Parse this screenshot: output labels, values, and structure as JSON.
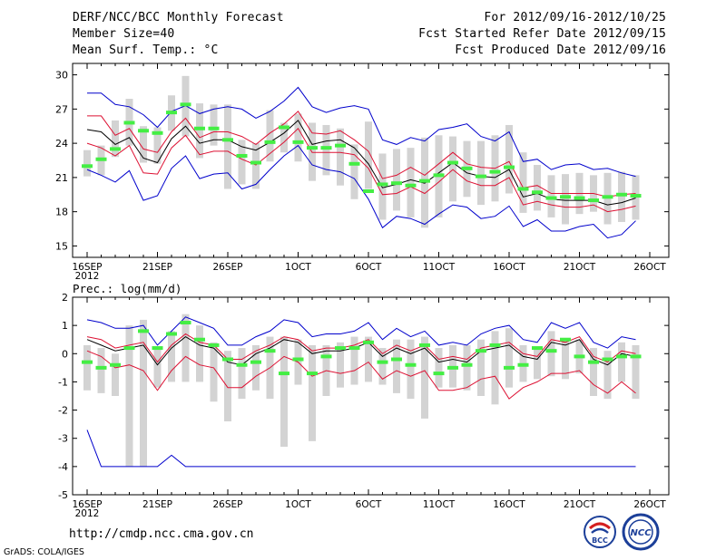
{
  "header": {
    "title": "DERF/NCC/BCC Monthly Forecast",
    "member_size": "Member Size=40",
    "variable": "Mean Surf. Temp.: °C",
    "forecast_period": "For 2012/09/16-2012/10/25",
    "started_refer": "Fcst Started Refer Date 2012/09/15",
    "produced": "Fcst Produced Date 2012/09/16"
  },
  "footer": {
    "url": "http://cmdp.ncc.cma.gov.cn",
    "grads": "GrADS: COLA/IGES",
    "logo_left": "BCC",
    "logo_right": "NCC"
  },
  "colors": {
    "envelope": "#0000cc",
    "spread": "#dd1133",
    "ensemble_mean": "#000000",
    "box": "#d3d3d3",
    "observation": "#44ee44"
  },
  "chart_data": [
    {
      "type": "line",
      "id": "temp",
      "title": "Mean Surf. Temp.: °C",
      "xlabel": "",
      "ylabel": "°C",
      "ylim": [
        14,
        31
      ],
      "yticks": [
        15,
        18,
        21,
        24,
        27,
        30
      ],
      "x_tick_labels": [
        {
          "day": 1,
          "label": "16SEP",
          "sub": "2012"
        },
        {
          "day": 6,
          "label": "21SEP"
        },
        {
          "day": 11,
          "label": "26SEP"
        },
        {
          "day": 16,
          "label": "1OCT"
        },
        {
          "day": 21,
          "label": "6OCT"
        },
        {
          "day": 26,
          "label": "11OCT"
        },
        {
          "day": 31,
          "label": "16OCT"
        },
        {
          "day": 36,
          "label": "21OCT"
        },
        {
          "day": 41,
          "label": "26OCT"
        }
      ],
      "days": [
        1,
        2,
        3,
        4,
        5,
        6,
        7,
        8,
        9,
        10,
        11,
        12,
        13,
        14,
        15,
        16,
        17,
        18,
        19,
        20,
        21,
        22,
        23,
        24,
        25,
        26,
        27,
        28,
        29,
        30,
        31,
        32,
        33,
        34,
        35,
        36,
        37,
        38,
        39,
        40
      ],
      "series": [
        {
          "name": "max",
          "role": "envelope",
          "values": [
            28.4,
            28.4,
            27.4,
            27.2,
            26.5,
            25.4,
            26.8,
            27.3,
            26.6,
            27.0,
            27.2,
            27.0,
            26.2,
            26.8,
            27.7,
            28.9,
            27.2,
            26.7,
            27.1,
            27.3,
            27.0,
            24.3,
            23.9,
            24.5,
            24.2,
            25.2,
            25.4,
            25.7,
            24.6,
            24.2,
            25.0,
            22.4,
            22.6,
            21.7,
            22.1,
            22.2,
            21.7,
            21.8,
            21.4,
            21.1
          ]
        },
        {
          "name": "p_high",
          "role": "spread",
          "values": [
            26.4,
            26.4,
            24.7,
            25.3,
            23.5,
            23.2,
            25.0,
            26.2,
            24.5,
            25.0,
            25.0,
            24.6,
            23.9,
            24.9,
            25.7,
            26.8,
            24.9,
            24.8,
            25.1,
            24.3,
            23.3,
            20.9,
            21.2,
            21.9,
            21.2,
            22.2,
            23.2,
            22.2,
            21.9,
            21.8,
            22.4,
            20.1,
            20.3,
            19.6,
            19.6,
            19.6,
            19.6,
            19.3,
            19.5,
            19.6
          ]
        },
        {
          "name": "p_low",
          "role": "spread",
          "values": [
            24.0,
            23.6,
            22.9,
            23.8,
            21.4,
            21.3,
            23.6,
            24.7,
            23.0,
            23.3,
            23.3,
            22.6,
            22.1,
            23.1,
            24.1,
            25.3,
            23.2,
            23.2,
            23.2,
            23.0,
            21.8,
            19.5,
            19.6,
            20.2,
            19.6,
            20.6,
            21.7,
            20.7,
            20.3,
            20.3,
            21.0,
            18.6,
            18.9,
            18.6,
            18.4,
            18.4,
            18.6,
            18.0,
            18.2,
            18.5
          ]
        },
        {
          "name": "mean",
          "role": "mean",
          "values": [
            25.2,
            25.0,
            23.9,
            24.5,
            22.7,
            22.3,
            24.4,
            25.5,
            24.0,
            24.3,
            24.3,
            23.7,
            23.4,
            24.1,
            24.9,
            26.0,
            23.9,
            24.2,
            24.3,
            23.6,
            22.2,
            20.1,
            20.4,
            20.8,
            20.5,
            21.4,
            22.3,
            21.4,
            21.1,
            21.0,
            21.7,
            19.3,
            19.6,
            19.1,
            19.0,
            19.0,
            19.0,
            18.6,
            18.8,
            19.2
          ]
        },
        {
          "name": "min",
          "role": "envelope",
          "values": [
            21.7,
            21.2,
            20.6,
            21.6,
            19.0,
            19.4,
            21.8,
            22.9,
            20.9,
            21.3,
            21.4,
            20.0,
            20.4,
            21.7,
            22.9,
            23.8,
            22.1,
            21.7,
            21.5,
            20.9,
            19.1,
            16.6,
            17.6,
            17.4,
            16.9,
            17.8,
            18.6,
            18.4,
            17.4,
            17.6,
            18.5,
            16.7,
            17.3,
            16.3,
            16.3,
            16.7,
            16.9,
            15.7,
            16.0,
            17.2
          ]
        },
        {
          "name": "observation",
          "role": "observation",
          "values": [
            22.0,
            22.6,
            23.5,
            25.8,
            25.1,
            24.9,
            26.7,
            27.4,
            25.3,
            25.3,
            24.3,
            22.9,
            22.3,
            24.1,
            25.4,
            24.1,
            23.6,
            23.6,
            23.8,
            22.2,
            19.8,
            20.4,
            20.5,
            20.3,
            20.7,
            21.2,
            22.3,
            21.8,
            21.1,
            21.5,
            21.9,
            20.0,
            19.7,
            19.2,
            19.3,
            19.2,
            19.0,
            19.3,
            19.5,
            19.4
          ]
        },
        {
          "name": "box_high",
          "role": "box",
          "values": [
            23.4,
            23.8,
            26.0,
            27.9,
            25.5,
            25.4,
            28.2,
            29.9,
            27.5,
            27.4,
            27.4,
            24.3,
            24.0,
            26.9,
            25.8,
            26.6,
            25.8,
            25.6,
            25.3,
            23.9,
            25.9,
            23.1,
            23.5,
            23.6,
            24.5,
            24.7,
            24.6,
            24.2,
            24.2,
            24.7,
            25.6,
            23.2,
            22.1,
            21.2,
            21.3,
            21.4,
            21.2,
            21.4,
            21.5,
            21.2
          ]
        },
        {
          "name": "box_low",
          "role": "box",
          "values": [
            21.1,
            21.2,
            22.8,
            23.8,
            22.3,
            22.2,
            25.1,
            24.6,
            22.7,
            23.8,
            20.0,
            20.4,
            20.0,
            22.4,
            23.2,
            22.4,
            20.7,
            21.2,
            20.3,
            19.1,
            20.0,
            17.3,
            18.1,
            17.5,
            16.6,
            17.5,
            18.9,
            19.3,
            18.6,
            18.9,
            19.6,
            17.9,
            18.1,
            17.5,
            16.9,
            17.8,
            18.0,
            16.9,
            17.1,
            17.3
          ]
        }
      ]
    },
    {
      "type": "line",
      "id": "prec",
      "title": "Prec.: log(mm/d)",
      "xlabel": "",
      "ylabel": "log(mm/d)",
      "ylim": [
        -5,
        2
      ],
      "yticks": [
        -5,
        -4,
        -3,
        -2,
        -1,
        0,
        1,
        2
      ],
      "x_tick_labels": [
        {
          "day": 1,
          "label": "16SEP",
          "sub": "2012"
        },
        {
          "day": 6,
          "label": "21SEP"
        },
        {
          "day": 11,
          "label": "26SEP"
        },
        {
          "day": 16,
          "label": "1OCT"
        },
        {
          "day": 21,
          "label": "6OCT"
        },
        {
          "day": 26,
          "label": "11OCT"
        },
        {
          "day": 31,
          "label": "16OCT"
        },
        {
          "day": 36,
          "label": "21OCT"
        },
        {
          "day": 41,
          "label": "26OCT"
        }
      ],
      "days": [
        1,
        2,
        3,
        4,
        5,
        6,
        7,
        8,
        9,
        10,
        11,
        12,
        13,
        14,
        15,
        16,
        17,
        18,
        19,
        20,
        21,
        22,
        23,
        24,
        25,
        26,
        27,
        28,
        29,
        30,
        31,
        32,
        33,
        34,
        35,
        36,
        37,
        38,
        39,
        40
      ],
      "series": [
        {
          "name": "max",
          "role": "envelope",
          "values": [
            1.2,
            1.1,
            0.9,
            0.9,
            1.0,
            0.3,
            0.8,
            1.3,
            1.1,
            0.9,
            0.3,
            0.3,
            0.6,
            0.8,
            1.2,
            1.1,
            0.6,
            0.7,
            0.7,
            0.8,
            1.1,
            0.5,
            0.9,
            0.6,
            0.8,
            0.3,
            0.4,
            0.3,
            0.7,
            0.9,
            1.0,
            0.5,
            0.4,
            1.1,
            0.9,
            1.1,
            0.4,
            0.2,
            0.6,
            0.5
          ]
        },
        {
          "name": "p_high",
          "role": "spread",
          "values": [
            0.6,
            0.5,
            0.2,
            0.3,
            0.4,
            -0.3,
            0.3,
            0.7,
            0.4,
            0.3,
            -0.2,
            -0.2,
            0.1,
            0.3,
            0.6,
            0.5,
            0.1,
            0.2,
            0.2,
            0.3,
            0.5,
            0.0,
            0.3,
            0.1,
            0.3,
            -0.2,
            -0.1,
            -0.2,
            0.2,
            0.3,
            0.4,
            0.0,
            -0.1,
            0.5,
            0.4,
            0.6,
            -0.1,
            -0.3,
            0.1,
            0.0
          ]
        },
        {
          "name": "mean",
          "role": "mean",
          "values": [
            0.5,
            0.3,
            0.1,
            0.2,
            0.3,
            -0.4,
            0.2,
            0.6,
            0.3,
            0.2,
            -0.3,
            -0.4,
            0.0,
            0.2,
            0.5,
            0.4,
            0.0,
            0.1,
            0.1,
            0.2,
            0.4,
            -0.1,
            0.2,
            0.0,
            0.2,
            -0.3,
            -0.2,
            -0.3,
            0.1,
            0.2,
            0.3,
            -0.1,
            -0.2,
            0.4,
            0.3,
            0.5,
            -0.2,
            -0.4,
            0.0,
            -0.1
          ]
        },
        {
          "name": "p_low",
          "role": "spread",
          "values": [
            0.1,
            -0.1,
            -0.5,
            -0.4,
            -0.6,
            -1.3,
            -0.6,
            -0.1,
            -0.4,
            -0.5,
            -1.2,
            -1.2,
            -0.8,
            -0.5,
            -0.1,
            -0.3,
            -0.8,
            -0.6,
            -0.7,
            -0.6,
            -0.3,
            -0.9,
            -0.6,
            -0.8,
            -0.6,
            -1.3,
            -1.3,
            -1.2,
            -0.9,
            -0.8,
            -1.6,
            -1.2,
            -1.0,
            -0.7,
            -0.7,
            -0.6,
            -1.1,
            -1.4,
            -1.0,
            -1.4
          ]
        },
        {
          "name": "min",
          "role": "envelope",
          "values": [
            -2.7,
            -4.0,
            -4.0,
            -4.0,
            -4.0,
            -4.0,
            -3.6,
            -4.0,
            -4.0,
            -4.0,
            -4.0,
            -4.0,
            -4.0,
            -4.0,
            -4.0,
            -4.0,
            -4.0,
            -4.0,
            -4.0,
            -4.0,
            -4.0,
            -4.0,
            -4.0,
            -4.0,
            -4.0,
            -4.0,
            -4.0,
            -4.0,
            -4.0,
            -4.0,
            -4.0,
            -4.0,
            -4.0,
            -4.0,
            -4.0,
            -4.0,
            -4.0,
            -4.0,
            -4.0,
            -4.0
          ]
        },
        {
          "name": "observation",
          "role": "observation",
          "values": [
            -0.3,
            -0.5,
            -0.4,
            0.2,
            0.8,
            0.2,
            0.7,
            1.1,
            0.5,
            0.3,
            -0.2,
            -0.4,
            -0.3,
            0.1,
            -0.7,
            -0.2,
            -0.7,
            -0.1,
            0.2,
            0.2,
            0.4,
            -0.3,
            -0.2,
            -0.4,
            0.3,
            -0.7,
            -0.5,
            -0.4,
            0.1,
            0.3,
            -0.5,
            -0.4,
            0.2,
            0.1,
            0.5,
            -0.1,
            -0.3,
            -0.2,
            -0.1,
            -0.1
          ]
        },
        {
          "name": "box_high",
          "role": "box",
          "values": [
            0.3,
            0.2,
            0.0,
            1.0,
            1.2,
            0.2,
            0.8,
            1.4,
            1.0,
            0.4,
            0.1,
            0.2,
            0.3,
            0.6,
            0.6,
            0.5,
            0.3,
            0.3,
            0.4,
            0.6,
            0.6,
            0.2,
            0.5,
            0.5,
            0.6,
            0.2,
            0.3,
            0.3,
            0.5,
            0.8,
            0.9,
            0.3,
            0.2,
            0.8,
            0.5,
            0.5,
            0.2,
            0.1,
            0.4,
            0.3
          ]
        },
        {
          "name": "box_low",
          "role": "box",
          "values": [
            -1.3,
            -1.4,
            -1.5,
            -4.0,
            -4.0,
            -1.2,
            -1.0,
            -1.0,
            -1.0,
            -1.7,
            -2.4,
            -1.6,
            -1.3,
            -1.6,
            -3.3,
            -1.1,
            -3.1,
            -1.5,
            -1.2,
            -1.1,
            -1.0,
            -1.1,
            -1.4,
            -1.6,
            -2.3,
            -1.2,
            -1.2,
            -1.3,
            -1.5,
            -1.8,
            -1.2,
            -1.0,
            -0.9,
            -0.8,
            -0.9,
            -0.7,
            -1.5,
            -1.6,
            -1.0,
            -1.6
          ]
        }
      ]
    }
  ]
}
